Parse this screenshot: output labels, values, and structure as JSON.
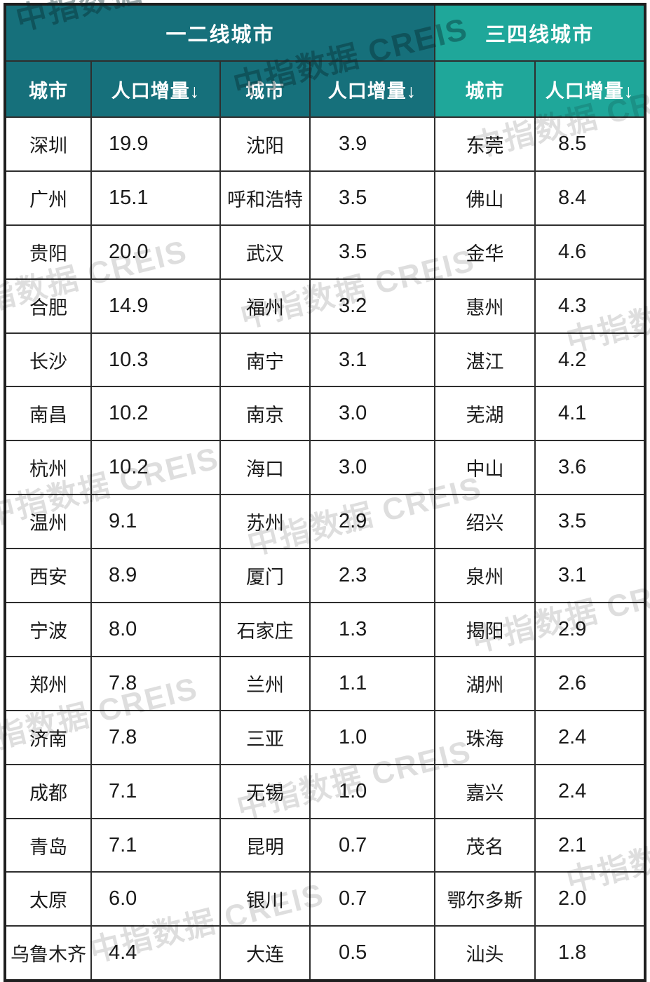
{
  "colors": {
    "tier12_header_bg": "#16707b",
    "tier34_header_bg": "#1fa79a",
    "grid_line": "#2e2e2e",
    "header_text": "#ffffff",
    "body_text": "#1a1a1a"
  },
  "watermark": {
    "text": "中指数据 CREIS"
  },
  "table": {
    "groups": [
      {
        "label": "一二线城市"
      },
      {
        "label": "三四线城市"
      }
    ],
    "subheader": {
      "city": "城市",
      "value": "人口增量↓"
    },
    "rows": [
      [
        "深圳",
        "19.9",
        "沈阳",
        "3.9",
        "东莞",
        "8.5"
      ],
      [
        "广州",
        "15.1",
        "呼和浩特",
        "3.5",
        "佛山",
        "8.4"
      ],
      [
        "贵阳",
        "20.0",
        "武汉",
        "3.5",
        "金华",
        "4.6"
      ],
      [
        "合肥",
        "14.9",
        "福州",
        "3.2",
        "惠州",
        "4.3"
      ],
      [
        "长沙",
        "10.3",
        "南宁",
        "3.1",
        "湛江",
        "4.2"
      ],
      [
        "南昌",
        "10.2",
        "南京",
        "3.0",
        "芜湖",
        "4.1"
      ],
      [
        "杭州",
        "10.2",
        "海口",
        "3.0",
        "中山",
        "3.6"
      ],
      [
        "温州",
        "9.1",
        "苏州",
        "2.9",
        "绍兴",
        "3.5"
      ],
      [
        "西安",
        "8.9",
        "厦门",
        "2.3",
        "泉州",
        "3.1"
      ],
      [
        "宁波",
        "8.0",
        "石家庄",
        "1.3",
        "揭阳",
        "2.9"
      ],
      [
        "郑州",
        "7.8",
        "兰州",
        "1.1",
        "湖州",
        "2.6"
      ],
      [
        "济南",
        "7.8",
        "三亚",
        "1.0",
        "珠海",
        "2.4"
      ],
      [
        "成都",
        "7.1",
        "无锡",
        "1.0",
        "嘉兴",
        "2.4"
      ],
      [
        "青岛",
        "7.1",
        "昆明",
        "0.7",
        "茂名",
        "2.1"
      ],
      [
        "太原",
        "6.0",
        "银川",
        "0.7",
        "鄂尔多斯",
        "2.0"
      ],
      [
        "乌鲁木齐",
        "4.4",
        "大连",
        "0.5",
        "汕头",
        "1.8"
      ]
    ]
  },
  "chart_data": {
    "type": "table",
    "title": "城市人口增量表（一二线城市 / 三四线城市）",
    "column_headers": [
      "城市",
      "人口增量↓",
      "城市",
      "人口增量↓",
      "城市",
      "人口增量↓"
    ],
    "series": [
      {
        "name": "一二线城市",
        "categories": [
          "深圳",
          "广州",
          "贵阳",
          "合肥",
          "长沙",
          "南昌",
          "杭州",
          "温州",
          "西安",
          "宁波",
          "郑州",
          "济南",
          "成都",
          "青岛",
          "太原",
          "乌鲁木齐",
          "沈阳",
          "呼和浩特",
          "武汉",
          "福州",
          "南宁",
          "南京",
          "海口",
          "苏州",
          "厦门",
          "石家庄",
          "兰州",
          "三亚",
          "无锡",
          "昆明",
          "银川",
          "大连"
        ],
        "values": [
          19.9,
          15.1,
          20.0,
          14.9,
          10.3,
          10.2,
          10.2,
          9.1,
          8.9,
          8.0,
          7.8,
          7.8,
          7.1,
          7.1,
          6.0,
          4.4,
          3.9,
          3.5,
          3.5,
          3.2,
          3.1,
          3.0,
          3.0,
          2.9,
          2.3,
          1.3,
          1.1,
          1.0,
          1.0,
          0.7,
          0.7,
          0.5
        ]
      },
      {
        "name": "三四线城市",
        "categories": [
          "东莞",
          "佛山",
          "金华",
          "惠州",
          "湛江",
          "芜湖",
          "中山",
          "绍兴",
          "泉州",
          "揭阳",
          "湖州",
          "珠海",
          "嘉兴",
          "茂名",
          "鄂尔多斯",
          "汕头"
        ],
        "values": [
          8.5,
          8.4,
          4.6,
          4.3,
          4.2,
          4.1,
          3.6,
          3.5,
          3.1,
          2.9,
          2.6,
          2.4,
          2.4,
          2.1,
          2.0,
          1.8
        ]
      }
    ]
  }
}
